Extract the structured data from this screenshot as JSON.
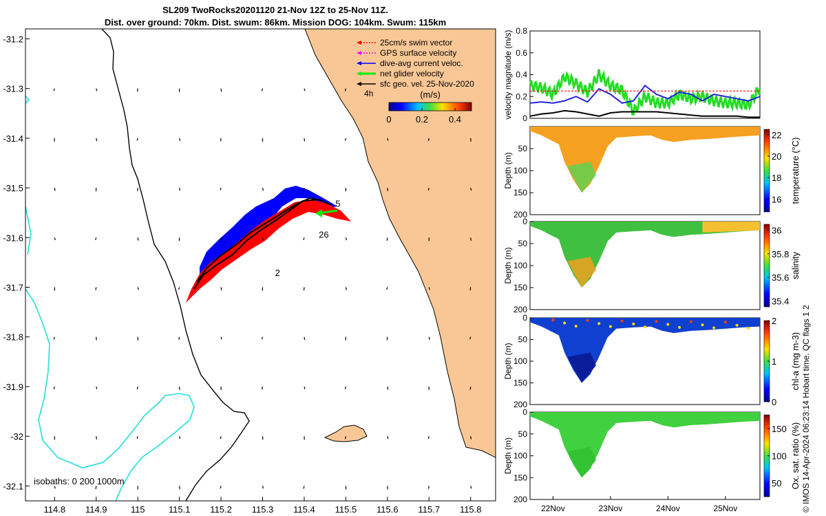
{
  "title": {
    "line1": "SL209 TwoRocks20201120 21-Nov 12Z to 25-Nov 11Z.",
    "line2": "Dist. over ground: 70km. Dist. swum: 86km. Mission DOG: 104km. Swum: 115km"
  },
  "footer": "© IMOS 14-Apr-2024 06:23:14 Hobart time. QC flags 1  2",
  "map": {
    "xlim": [
      114.73,
      115.86
    ],
    "ylim": [
      -32.13,
      -31.18
    ],
    "xticks": [
      "114.8",
      "114.9",
      "115",
      "115.1",
      "115.2",
      "115.3",
      "115.4",
      "115.5",
      "115.6",
      "115.7",
      "115.8"
    ],
    "yticks": [
      "-31.2",
      "-31.3",
      "-31.4",
      "-31.5",
      "-31.6",
      "-31.7",
      "-31.8",
      "-31.9",
      "-32",
      "-32.1"
    ],
    "isobath_label": "isobaths: 0   200  1000m",
    "time_label": "4h",
    "day_labels": [
      {
        "text": "26",
        "lon": 115.435,
        "lat": -31.6
      },
      {
        "text": "2",
        "lon": 115.33,
        "lat": -31.677
      },
      {
        "text": "5",
        "lon": 115.475,
        "lat": -31.538
      }
    ],
    "land_color": "#f9c795",
    "legend": [
      {
        "label": "25cm/s swim vector",
        "color": "#ff0000"
      },
      {
        "label": "GPS surface velocity",
        "color": "#ff00ff"
      },
      {
        "label": "dive-avg current veloc.",
        "color": "#0000ff"
      },
      {
        "label": "net glider velocity",
        "color": "#00ee00"
      },
      {
        "label": "sfc geo. vel. 25-Nov-2020",
        "color": "#000000"
      }
    ],
    "colorbar": {
      "label": "(m/s)",
      "ticks": [
        "0",
        "0.2",
        "0.4"
      ],
      "range": [
        0,
        0.5
      ],
      "colormap": "jet"
    }
  },
  "chart_data": [
    {
      "type": "line",
      "ylabel": "velocity magnitude (m/s)",
      "ylim": [
        0,
        0.8
      ],
      "yticks": [
        "0",
        "0.2",
        "0.4",
        "0.6",
        "0.8"
      ],
      "xlim_days": [
        21.6,
        25.6
      ],
      "x": [
        21.6,
        21.8,
        22.0,
        22.2,
        22.4,
        22.6,
        22.8,
        23.0,
        23.2,
        23.4,
        23.6,
        23.8,
        24.0,
        24.2,
        24.4,
        24.6,
        24.8,
        25.0,
        25.2,
        25.4,
        25.6
      ],
      "series": [
        {
          "color": "#22dd22",
          "values": [
            0.3,
            0.28,
            0.22,
            0.38,
            0.32,
            0.24,
            0.4,
            0.3,
            0.26,
            0.06,
            0.2,
            0.14,
            0.14,
            0.22,
            0.18,
            0.2,
            0.16,
            0.14,
            0.14,
            0.12,
            0.28
          ]
        },
        {
          "color": "#2222dd",
          "values": [
            0.14,
            0.15,
            0.14,
            0.16,
            0.2,
            0.15,
            0.27,
            0.22,
            0.14,
            0.16,
            0.3,
            0.22,
            0.18,
            0.24,
            0.22,
            0.16,
            0.22,
            0.2,
            0.18,
            0.16,
            0.2
          ]
        },
        {
          "color": "#000000",
          "values": [
            0.02,
            0.04,
            0.05,
            0.07,
            0.06,
            0.04,
            0.02,
            0.05,
            0.06,
            0.06,
            0.06,
            0.06,
            0.05,
            0.04,
            0.03,
            0.02,
            0.02,
            0.02,
            0.02,
            0.01,
            0.01
          ]
        },
        {
          "color": "#ff0000",
          "values": [
            0.25,
            0.25,
            0.25,
            0.25,
            0.25,
            0.25,
            0.25,
            0.25,
            0.25,
            0.25,
            0.25,
            0.25,
            0.25,
            0.25,
            0.25,
            0.25,
            0.25,
            0.25,
            0.25,
            0.25,
            0.25
          ]
        }
      ]
    },
    {
      "type": "heatmap",
      "ylabel": "Depth (m)",
      "cbar_label": "temperature (°C)",
      "ylim": [
        0,
        200
      ],
      "yticks": [
        "50",
        "100",
        "150",
        "200"
      ],
      "clim": [
        14.8,
        22.5
      ],
      "cticks": [
        "16",
        "18",
        "20",
        "22"
      ],
      "colors": [
        "#f5a020",
        "#e8b530",
        "#60d050"
      ]
    },
    {
      "type": "heatmap",
      "ylabel": "Depth (m)",
      "cbar_label": "salinity",
      "ylim": [
        0,
        200
      ],
      "yticks": [
        "0",
        "50",
        "100",
        "150",
        "200"
      ],
      "clim": [
        35.35,
        36.05
      ],
      "cticks": [
        "35.4",
        "35.6",
        "35.8",
        "36"
      ],
      "colors": [
        "#40c040",
        "#f5c030",
        "#f0a020"
      ]
    },
    {
      "type": "heatmap",
      "ylabel": "Depth (m)",
      "cbar_label": "chl-a (mg m-3)",
      "ylim": [
        0,
        200
      ],
      "yticks": [
        "0",
        "50",
        "100",
        "150",
        "200"
      ],
      "clim": [
        0,
        2
      ],
      "cticks": [
        "0",
        "1",
        "2"
      ],
      "colors": [
        "#1040d0",
        "#1060f0",
        "#0a1890"
      ]
    },
    {
      "type": "heatmap",
      "ylabel": "Depth (m)",
      "cbar_label": "Ox. sat. ratio (%)",
      "ylim": [
        0,
        200
      ],
      "yticks": [
        "0",
        "50",
        "100",
        "150",
        "200"
      ],
      "clim": [
        25,
        175
      ],
      "cticks": [
        "50",
        "100",
        "150"
      ],
      "colors": [
        "#40d040",
        "#70e020",
        "#30c030"
      ]
    }
  ],
  "time_axis": {
    "ticks": [
      "22Nov",
      "23Nov",
      "24Nov",
      "25Nov"
    ]
  }
}
